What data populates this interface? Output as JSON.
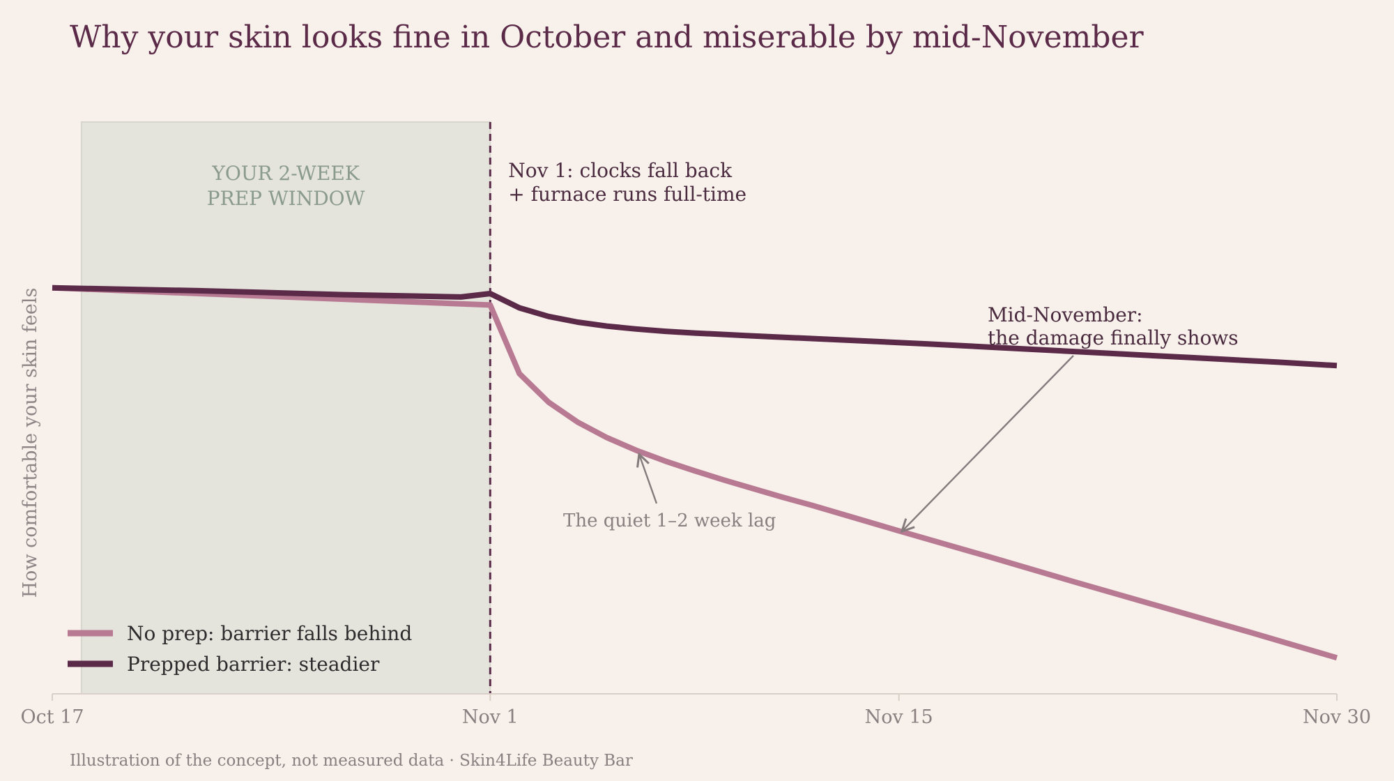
{
  "page": {
    "title": "Why your skin looks fine in October and miserable by mid-November",
    "footer": "Illustration of the concept, not measured data  ·  Skin4Life Beauty Bar"
  },
  "colors": {
    "background": "#f8f1eb",
    "no_prep": "#b87a92",
    "prepped": "#5a2a48",
    "prep_band": "#e4e3dc",
    "axis": "#d9cfc6",
    "arrow": "#857a7c"
  },
  "chart_data": {
    "type": "line",
    "title": "Why your skin looks fine in October and miserable by mid-November",
    "xlabel": "",
    "ylabel": "How comfortable your skin feels",
    "x_ticks": [
      "Oct 17",
      "Nov 1",
      "Nov 15",
      "Nov 30"
    ],
    "xlim": [
      0,
      44
    ],
    "ylim": [
      0,
      100
    ],
    "grid": false,
    "legend_position": "bottom-left",
    "series": [
      {
        "name": "No prep: barrier falls behind",
        "color": "#b87a92",
        "points": [
          [
            0,
            71
          ],
          [
            1,
            70.8
          ],
          [
            15,
            68
          ],
          [
            16,
            56
          ],
          [
            17,
            51
          ],
          [
            18,
            47.5
          ],
          [
            19,
            44.8
          ],
          [
            20,
            42.6
          ],
          [
            21,
            40.7
          ],
          [
            22,
            39
          ],
          [
            23,
            37.4
          ],
          [
            24,
            35.9
          ],
          [
            25,
            34.4
          ],
          [
            26,
            33
          ],
          [
            29,
            28.5
          ],
          [
            32,
            24.1
          ],
          [
            35,
            19.6
          ],
          [
            38,
            15.2
          ],
          [
            41,
            10.8
          ],
          [
            44,
            6.3
          ]
        ]
      },
      {
        "name": "Prepped barrier: steadier",
        "color": "#5a2a48",
        "points": [
          [
            0,
            71
          ],
          [
            1,
            70.9
          ],
          [
            5,
            70.5
          ],
          [
            10,
            69.8
          ],
          [
            14,
            69.4
          ],
          [
            15,
            70
          ],
          [
            16,
            67.5
          ],
          [
            17,
            66
          ],
          [
            18,
            65
          ],
          [
            19,
            64.3
          ],
          [
            20,
            63.8
          ],
          [
            21,
            63.4
          ],
          [
            22,
            63.1
          ],
          [
            24,
            62.6
          ],
          [
            27,
            61.9
          ],
          [
            30,
            61.2
          ],
          [
            33,
            60.4
          ],
          [
            36,
            59.6
          ],
          [
            39,
            58.8
          ],
          [
            42,
            58
          ],
          [
            44,
            57.4
          ]
        ]
      }
    ],
    "annotations": {
      "band": {
        "label_lines": [
          "YOUR 2-WEEK",
          "PREP WINDOW"
        ]
      },
      "event": {
        "lines": [
          "Nov 1: clocks fall back",
          "+ furnace runs full-time"
        ]
      },
      "lag": {
        "text": "The quiet 1–2 week lag"
      },
      "damage": {
        "lines": [
          "Mid-November:",
          "the damage finally shows"
        ]
      }
    }
  }
}
